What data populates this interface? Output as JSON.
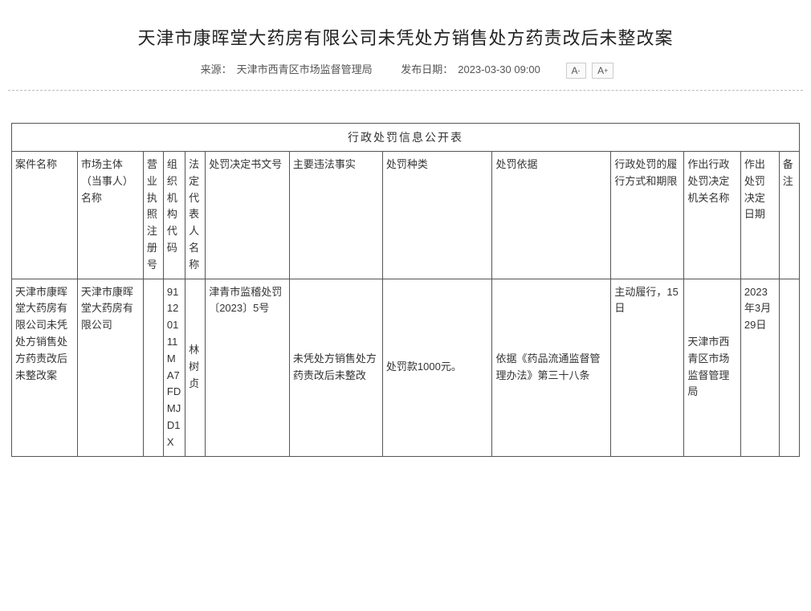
{
  "header": {
    "title": "天津市康晖堂大药房有限公司未凭处方销售处方药责改后未整改案",
    "source_label": "来源：",
    "source_value": "天津市西青区市场监督管理局",
    "publish_label": "发布日期：",
    "publish_value": "2023-03-30 09:00",
    "font_dec": "A",
    "font_dec_sup": "-",
    "font_inc": "A",
    "font_inc_sup": "+"
  },
  "table": {
    "caption": "行政处罚信息公开表",
    "columns": {
      "case_name": "案件名称",
      "entity_name": "市场主体（当事人）名称",
      "license_no": "营业执照注册号",
      "org_code": "组织机构代码",
      "legal_rep": "法定代表人名称",
      "doc_no": "处罚决定书文号",
      "facts": "主要违法事实",
      "penalty_type": "处罚种类",
      "basis": "处罚依据",
      "mode": "行政处罚的履行方式和期限",
      "agency": "作出行政处罚决定机关名称",
      "decision_date": "作出处罚决定日期",
      "remark": "备注"
    },
    "row": {
      "case_name": "天津市康晖堂大药房有限公司未凭处方销售处方药责改后未整改案",
      "entity_name": "天津市康晖堂大药房有限公司",
      "license_no": "",
      "org_code": "91120111MA7FDMJD1X",
      "legal_rep": "林树贞",
      "doc_no": "津青市监稽处罚〔2023〕5号",
      "facts": "未凭处方销售处方药责改后未整改",
      "penalty_type": "处罚款1000元。",
      "basis": "依据《药品流通监督管理办法》第三十八条",
      "mode": "主动履行，15日",
      "agency": "天津市西青区市场监督管理局",
      "decision_date": "2023年3月29日",
      "remark": ""
    }
  }
}
